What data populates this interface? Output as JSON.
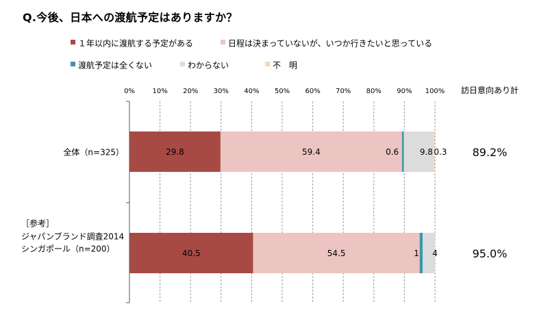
{
  "chart_data": {
    "type": "bar",
    "orientation": "horizontal",
    "stacked": true,
    "title": "Q.今後、日本への渡航予定はありますか？",
    "xlim": [
      0,
      100
    ],
    "x_ticks": [
      "0%",
      "10%",
      "20%",
      "30%",
      "40%",
      "50%",
      "60%",
      "70%",
      "80%",
      "90%",
      "100%"
    ],
    "grid": "vertical-dashed",
    "legend_position": "top",
    "series": [
      {
        "name": "１年以内に渡航する予定がある",
        "color": "#a84a44",
        "values": [
          29.8,
          40.5
        ],
        "labels": [
          "29.8",
          "40.5"
        ]
      },
      {
        "name": "日程は決まっていないが、いつか行きたいと思っている",
        "color": "#ecc4c2",
        "values": [
          59.4,
          54.5
        ],
        "labels": [
          "59.4",
          "54.5"
        ]
      },
      {
        "name": "渡航予定は全くない",
        "color": "#3d96aa",
        "values": [
          0.6,
          1
        ],
        "labels": [
          "0.6",
          "1"
        ]
      },
      {
        "name": "わからない",
        "color": "#dcdcdc",
        "values": [
          9.8,
          4
        ],
        "labels": [
          "9.8",
          "4"
        ]
      },
      {
        "name": "不　明",
        "color": "#f9d7b7",
        "values": [
          0.3,
          0
        ],
        "labels": [
          "0.3",
          ""
        ]
      }
    ],
    "categories": [
      {
        "lines": [
          "全体（n=325）"
        ]
      },
      {
        "lines": [
          "［参考］",
          "ジャパンブランド調査2014",
          "シンガポール（n=200）"
        ]
      }
    ],
    "side_column": {
      "header": "訪日意向あり計",
      "values": [
        "89.2%",
        "95.0%"
      ]
    }
  }
}
